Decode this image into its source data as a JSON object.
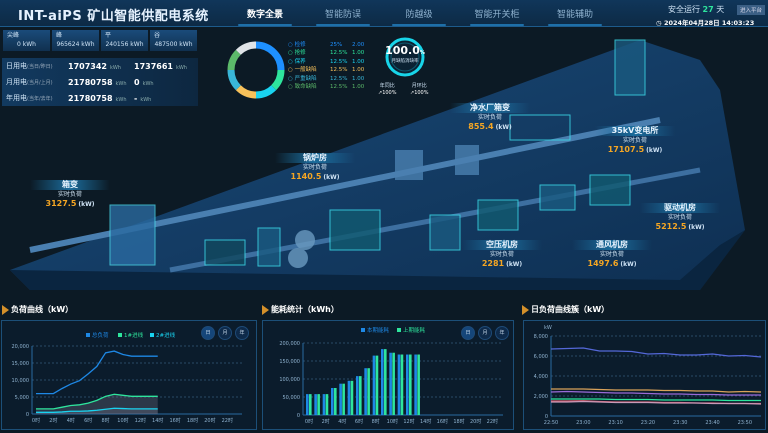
{
  "header": {
    "title": "INT-aiPS 矿山智能供配电系统",
    "nav": [
      "数字全景",
      "智能防误",
      "防越级",
      "智能开关柜",
      "智能辅助"
    ],
    "active_nav": 0,
    "safe_label": "安全运行",
    "safe_days": "27",
    "safe_unit": "天",
    "enter_button": "进入平台",
    "datetime": "2024年04月28日 14:03:23"
  },
  "tariff_cards": [
    {
      "label": "尖峰",
      "value": "0 kWh"
    },
    {
      "label": "峰",
      "value": "965624 kWh"
    },
    {
      "label": "平",
      "value": "240156 kWh"
    },
    {
      "label": "谷",
      "value": "487500 kWh"
    }
  ],
  "usage_rows": [
    {
      "label": "日用电",
      "sub": "(当日/昨日)",
      "current": "1707342",
      "prev": "1737661",
      "unit": "kWh"
    },
    {
      "label": "月用电",
      "sub": "(当月/上月)",
      "current": "21780758",
      "prev": "0",
      "unit": "kWh"
    },
    {
      "label": "年用电",
      "sub": "(当年/去年)",
      "current": "21780758",
      "prev": "-",
      "unit": "kWh"
    }
  ],
  "donut": {
    "items": [
      {
        "name": "检修",
        "pct": "25%",
        "val": "2.00",
        "share": 25,
        "color": "#1e90ff"
      },
      {
        "name": "抢修",
        "pct": "12.5%",
        "val": "1.00",
        "share": 12.5,
        "color": "#2ee59d"
      },
      {
        "name": "保养",
        "pct": "12.5%",
        "val": "1.00",
        "share": 12.5,
        "color": "#19d3f0"
      },
      {
        "name": "一般缺陷",
        "pct": "12.5%",
        "val": "1.00",
        "share": 12.5,
        "color": "#f7c15a"
      },
      {
        "name": "严重缺陷",
        "pct": "12.5%",
        "val": "1.00",
        "share": 12.5,
        "color": "#39b6d8"
      },
      {
        "name": "致命缺陷",
        "pct": "12.5%",
        "val": "1.00",
        "share": 12.5,
        "color": "#5cba6a"
      },
      {
        "name": "",
        "pct": "",
        "val": "",
        "share": 12.5,
        "color": "#e0e4e8"
      }
    ]
  },
  "gauge": {
    "value": "100.0",
    "unit": "%",
    "label": "月缺陷消缺率",
    "yoy_label": "年同比",
    "yoy": "↗100%",
    "mom_label": "月环比",
    "mom": "↗100%",
    "colors": {
      "ring": "#18d4e8"
    }
  },
  "map_labels": [
    {
      "name": "箱变",
      "sub": "实时负荷",
      "value": "3127.5",
      "unit": "(kW)"
    },
    {
      "name": "锅炉房",
      "sub": "实时负荷",
      "value": "1140.5",
      "unit": "(kW)"
    },
    {
      "name": "净水厂箱变",
      "sub": "实时负荷",
      "value": "855.4",
      "unit": "(kW)"
    },
    {
      "name": "35kV变电所",
      "sub": "实时负荷",
      "value": "17107.5",
      "unit": "(kW)"
    },
    {
      "name": "驱动机房",
      "sub": "实时负荷",
      "value": "5212.5",
      "unit": "(kW)"
    },
    {
      "name": "空压机房",
      "sub": "实时负荷",
      "value": "2281",
      "unit": "(kW)"
    },
    {
      "name": "通风机房",
      "sub": "实时负荷",
      "value": "1497.6",
      "unit": "(kW)"
    }
  ],
  "period_buttons": [
    "日",
    "月",
    "年"
  ],
  "chart_data": [
    {
      "type": "line",
      "title": "负荷曲线（kW）",
      "ylim": [
        0,
        20000
      ],
      "yticks": [
        "0",
        "5,000",
        "10,000",
        "15,000",
        "20,000"
      ],
      "xlim": [
        0,
        23
      ],
      "xticks": [
        "0时",
        "2时",
        "4时",
        "6时",
        "8时",
        "10时",
        "12时",
        "14时",
        "16时",
        "18时",
        "20时",
        "22时"
      ],
      "x": [
        0,
        1,
        2,
        3,
        4,
        5,
        6,
        7,
        8,
        9,
        10,
        11,
        12,
        13,
        14
      ],
      "legend": "top",
      "grid": true,
      "series": [
        {
          "name": "总负荷",
          "color": "#1e88e5",
          "values": [
            6000,
            6000,
            6000,
            7500,
            8800,
            9800,
            11800,
            14000,
            18000,
            18500,
            17500,
            17000,
            17000,
            17000,
            17000
          ]
        },
        {
          "name": "1#进线",
          "color": "#2ee59d",
          "values": [
            1500,
            1500,
            1500,
            2000,
            2500,
            2700,
            3200,
            4000,
            5200,
            5800,
            5500,
            5200,
            5200,
            5200,
            5200
          ]
        },
        {
          "name": "2#进线",
          "color": "#19d3f0",
          "values": [
            500,
            500,
            500,
            600,
            800,
            800,
            900,
            1100,
            1400,
            1700,
            1600,
            1500,
            1500,
            1500,
            1500
          ]
        }
      ]
    },
    {
      "type": "bar",
      "title": "能耗统计（kWh）",
      "ylim": [
        0,
        200000
      ],
      "yticks": [
        "0",
        "50,000",
        "100,000",
        "150,000",
        "200,000"
      ],
      "xlim": [
        0,
        23
      ],
      "xticks": [
        "0时",
        "2时",
        "4时",
        "6时",
        "8时",
        "10时",
        "12时",
        "14时",
        "16时",
        "18时",
        "20时",
        "22时"
      ],
      "x": [
        0,
        1,
        2,
        3,
        4,
        5,
        6,
        7,
        8,
        9,
        10,
        11,
        12,
        13
      ],
      "legend": "top",
      "grid": true,
      "series": [
        {
          "name": "本期能耗",
          "color": "#1e88e5",
          "values": [
            58000,
            58000,
            58000,
            75000,
            87000,
            95000,
            108000,
            130000,
            165000,
            183000,
            173000,
            168000,
            168000,
            168000
          ]
        },
        {
          "name": "上期能耗",
          "color": "#2ee59d",
          "values": [
            58000,
            58000,
            58000,
            75000,
            87000,
            95000,
            108000,
            130000,
            165000,
            183000,
            173000,
            168000,
            168000,
            168000
          ]
        }
      ]
    },
    {
      "type": "line",
      "title": "日负荷曲线簇（kW）",
      "ylabel": "kW",
      "ylim": [
        0,
        8000
      ],
      "yticks": [
        "0",
        "2,000",
        "4,000",
        "6,000",
        "8,000"
      ],
      "xticks": [
        "22:50",
        "23:00",
        "23:10",
        "23:20",
        "23:30",
        "23:40",
        "23:50"
      ],
      "x": [
        "22:50",
        "22:55",
        "23:00",
        "23:05",
        "23:10",
        "23:15",
        "23:20",
        "23:25",
        "23:30",
        "23:35",
        "23:40",
        "23:45",
        "23:50",
        "23:55"
      ],
      "grid": true,
      "series": [
        {
          "color": "#5468d8",
          "values": [
            6700,
            6750,
            6800,
            6500,
            6500,
            6450,
            6200,
            6250,
            6100,
            6100,
            6200,
            6000,
            6050,
            5900
          ]
        },
        {
          "color": "#d9a25a",
          "values": [
            2700,
            2700,
            2700,
            2650,
            2600,
            2600,
            2600,
            2550,
            2550,
            2500,
            2500,
            2400,
            2450,
            2400
          ]
        },
        {
          "color": "#9a6ad8",
          "values": [
            2400,
            2450,
            2400,
            2350,
            2300,
            2300,
            2250,
            2200,
            2200,
            2150,
            2150,
            2100,
            2100,
            2100
          ]
        },
        {
          "color": "#2ee59d",
          "values": [
            1700,
            1700,
            1700,
            1700,
            1650,
            1650,
            1650,
            1600,
            1600,
            1600,
            1600,
            1550,
            1550,
            1550
          ]
        },
        {
          "color": "#d25a6a",
          "values": [
            1500,
            1500,
            1520,
            1450,
            1400,
            1400,
            1400,
            1350,
            1350,
            1300,
            1300,
            1250,
            1250,
            1250
          ]
        },
        {
          "color": "#c89ab8",
          "values": [
            1400,
            1400,
            1450,
            1400,
            1350,
            1350,
            1350,
            1300,
            1300,
            1300,
            1250,
            1250,
            1250,
            1200
          ]
        }
      ]
    }
  ]
}
